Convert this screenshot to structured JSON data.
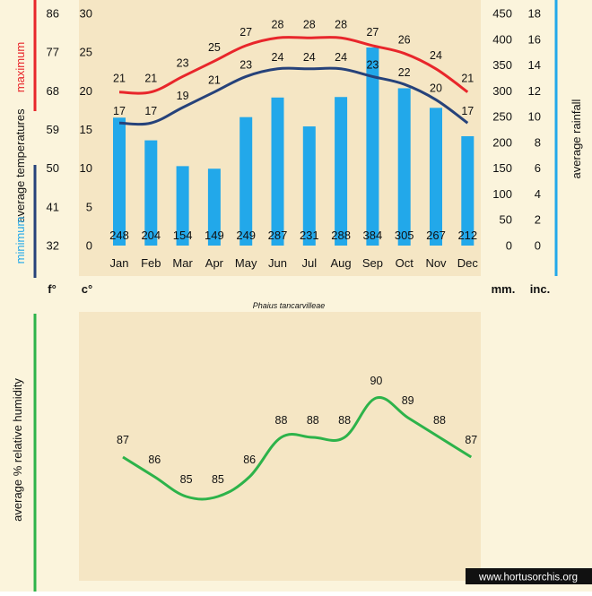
{
  "colors": {
    "background": "#fbf4dc",
    "plot_bg": "#f5e6c4",
    "max_temp": "#e8262b",
    "min_temp": "#26427a",
    "rain": "#22a8ea",
    "humidity": "#2db34a",
    "axis_text": "#111111"
  },
  "left_axis_labels": {
    "maximum": "maximum",
    "average_temperatures": "average  temperatures",
    "minimum": "minimum",
    "f_unit": "f°",
    "c_unit": "c°"
  },
  "right_axis_labels": {
    "average_rainfall": "average  rainfall",
    "mm_unit": "mm.",
    "inc_unit": "inc."
  },
  "humidity_axis_label": "average %  relative humidity",
  "species": "Phaius tancarvilleae",
  "watermark": "www.hortusorchis.org",
  "chart_data": [
    {
      "type": "bar+line",
      "title": "Phaius tancarvilleae",
      "categories": [
        "Jan",
        "Feb",
        "Mar",
        "Apr",
        "May",
        "Jun",
        "Jul",
        "Aug",
        "Sep",
        "Oct",
        "Nov",
        "Dec"
      ],
      "series": [
        {
          "name": "maximum",
          "axis": "celsius",
          "values": [
            21,
            21,
            23,
            25,
            27,
            28,
            28,
            28,
            27,
            26,
            24,
            21
          ]
        },
        {
          "name": "minimum",
          "axis": "celsius",
          "values": [
            17,
            17,
            19,
            21,
            23,
            24,
            24,
            24,
            23,
            22,
            20,
            17
          ]
        },
        {
          "name": "rainfall",
          "axis": "mm",
          "values": [
            248,
            204,
            154,
            149,
            249,
            287,
            231,
            288,
            384,
            305,
            267,
            212
          ]
        }
      ],
      "celsius_ticks": [
        0,
        5,
        10,
        15,
        20,
        25,
        30
      ],
      "fahrenheit_ticks": [
        32,
        41,
        50,
        59,
        68,
        77,
        86
      ],
      "mm_ticks": [
        0,
        50,
        100,
        150,
        200,
        250,
        300,
        350,
        400,
        450
      ],
      "inch_ticks": [
        0,
        2,
        4,
        6,
        8,
        10,
        12,
        14,
        16,
        18
      ],
      "ylim_celsius": [
        0,
        30
      ],
      "ylim_mm": [
        0,
        450
      ]
    },
    {
      "type": "line",
      "name": "relative humidity",
      "categories": [
        "Jan",
        "Feb",
        "Mar",
        "Apr",
        "May",
        "Jun",
        "Jul",
        "Aug",
        "Sep",
        "Oct",
        "Nov",
        "Dec"
      ],
      "values": [
        87,
        86,
        85,
        85,
        86,
        88,
        88,
        88,
        90,
        89,
        88,
        87
      ]
    }
  ]
}
